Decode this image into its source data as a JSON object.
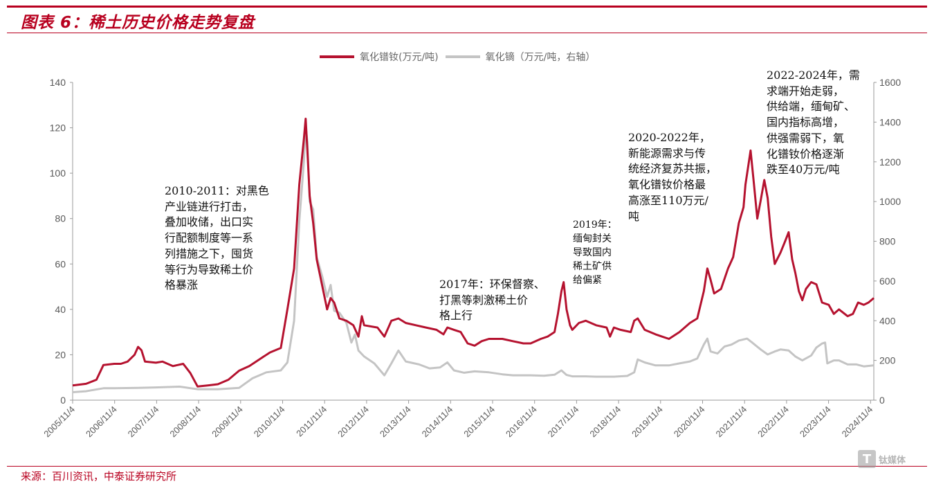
{
  "header": {
    "title": "图表 6：稀土历史价格走势复盘"
  },
  "legend": {
    "left_series": "氧化镨钕(万元/吨)",
    "right_series": "氧化镝（万元/吨，右轴）"
  },
  "annotations": {
    "a": [
      "2010-2011：对黑色",
      "产业链进行打击，",
      "叠加收储，出口实",
      "行配额制度等一系",
      "列措施之下，囤货",
      "等行为导致稀土价",
      "格暴涨"
    ],
    "b": [
      "2017年：环保督察、",
      "打黑等刺激稀土价",
      "格上行"
    ],
    "c": [
      "2019年：",
      "缅甸封关",
      "导致国内",
      "稀土矿供",
      "给偏紧"
    ],
    "d": [
      "2020-2022年，",
      "新能源需求与传",
      "统经济复苏共振，",
      "氧化镨钕价格最",
      "高涨至110万元/",
      "吨"
    ],
    "e": [
      "2022-2024年，需",
      "求端开始走弱，",
      "供给端，缅甸矿、",
      "国内指标高增，",
      "供强需弱下，氧",
      "化镨钕价格逐渐",
      "跌至40万元/吨"
    ]
  },
  "footer": {
    "source": "来源：百川资讯，中泰证券研究所"
  },
  "watermark": {
    "text": "钛媒体"
  },
  "colors": {
    "accent": "#b8001f",
    "prnd": "#b5122f",
    "dy": "#c4c4c4"
  },
  "chart_data": {
    "type": "line",
    "title": "",
    "xlabel": "",
    "ylabel": "",
    "x_ticks": [
      "2005/11/4",
      "2006/11/4",
      "2007/11/4",
      "2008/11/4",
      "2009/11/4",
      "2010/11/4",
      "2011/11/4",
      "2012/11/4",
      "2013/11/4",
      "2014/11/4",
      "2015/11/4",
      "2016/11/4",
      "2017/11/4",
      "2018/11/4",
      "2019/11/4",
      "2020/11/4",
      "2021/11/4",
      "2022/11/4",
      "2023/11/4",
      "2024/11/4"
    ],
    "ylim_left": [
      0,
      140
    ],
    "yticks_left": [
      0,
      20,
      40,
      60,
      80,
      100,
      120,
      140
    ],
    "ylim_right": [
      0,
      1600
    ],
    "yticks_right": [
      0,
      200,
      400,
      600,
      800,
      1000,
      1200,
      1400,
      1600
    ],
    "x_start": "2005-11-04",
    "x_end": "2025-01-31",
    "legend_position": "top",
    "grid": false,
    "series": [
      {
        "name": "氧化镨钕(万元/吨)",
        "axis": "left",
        "points": [
          [
            "2005-11-04",
            6.5
          ],
          [
            "2006-03-01",
            7.2
          ],
          [
            "2006-06-01",
            9
          ],
          [
            "2006-08-01",
            15.5
          ],
          [
            "2006-11-04",
            16
          ],
          [
            "2007-01-01",
            16
          ],
          [
            "2007-03-01",
            17
          ],
          [
            "2007-05-01",
            20
          ],
          [
            "2007-06-01",
            23.5
          ],
          [
            "2007-07-01",
            22
          ],
          [
            "2007-08-01",
            17
          ],
          [
            "2007-11-04",
            16.5
          ],
          [
            "2008-01-01",
            17
          ],
          [
            "2008-04-01",
            15
          ],
          [
            "2008-07-01",
            16
          ],
          [
            "2008-09-01",
            12
          ],
          [
            "2008-11-04",
            6
          ],
          [
            "2009-02-01",
            6.5
          ],
          [
            "2009-05-01",
            7
          ],
          [
            "2009-08-01",
            9
          ],
          [
            "2009-11-04",
            13
          ],
          [
            "2010-02-01",
            15
          ],
          [
            "2010-05-01",
            18
          ],
          [
            "2010-08-01",
            21
          ],
          [
            "2010-11-04",
            23
          ],
          [
            "2011-01-01",
            40
          ],
          [
            "2011-03-01",
            58
          ],
          [
            "2011-04-15",
            95
          ],
          [
            "2011-05-25",
            115
          ],
          [
            "2011-06-10",
            124
          ],
          [
            "2011-06-25",
            110
          ],
          [
            "2011-07-15",
            90
          ],
          [
            "2011-08-15",
            78
          ],
          [
            "2011-09-15",
            62
          ],
          [
            "2011-11-04",
            50
          ],
          [
            "2011-12-15",
            40
          ],
          [
            "2012-01-15",
            45
          ],
          [
            "2012-02-15",
            43
          ],
          [
            "2012-04-01",
            36
          ],
          [
            "2012-06-01",
            35
          ],
          [
            "2012-08-01",
            33
          ],
          [
            "2012-09-15",
            28
          ],
          [
            "2012-10-15",
            37
          ],
          [
            "2012-11-04",
            33
          ],
          [
            "2013-03-01",
            32
          ],
          [
            "2013-05-01",
            28
          ],
          [
            "2013-07-01",
            35
          ],
          [
            "2013-09-01",
            36
          ],
          [
            "2013-11-04",
            34
          ],
          [
            "2014-02-01",
            33
          ],
          [
            "2014-05-01",
            32
          ],
          [
            "2014-08-01",
            31
          ],
          [
            "2014-10-01",
            29
          ],
          [
            "2014-11-04",
            32
          ],
          [
            "2015-01-01",
            31
          ],
          [
            "2015-03-01",
            30
          ],
          [
            "2015-05-01",
            25
          ],
          [
            "2015-07-01",
            24
          ],
          [
            "2015-09-01",
            26
          ],
          [
            "2015-11-04",
            27
          ],
          [
            "2016-03-01",
            27
          ],
          [
            "2016-06-01",
            26
          ],
          [
            "2016-09-01",
            25
          ],
          [
            "2016-11-04",
            25
          ],
          [
            "2017-02-01",
            27
          ],
          [
            "2017-04-01",
            28
          ],
          [
            "2017-06-01",
            30
          ],
          [
            "2017-07-01",
            38
          ],
          [
            "2017-08-01",
            48
          ],
          [
            "2017-08-20",
            52
          ],
          [
            "2017-09-15",
            40
          ],
          [
            "2017-10-15",
            33
          ],
          [
            "2017-11-04",
            31
          ],
          [
            "2018-01-01",
            34
          ],
          [
            "2018-03-01",
            35
          ],
          [
            "2018-06-01",
            33
          ],
          [
            "2018-09-01",
            32
          ],
          [
            "2018-10-01",
            28
          ],
          [
            "2018-11-04",
            32
          ],
          [
            "2019-01-01",
            31
          ],
          [
            "2019-04-01",
            30
          ],
          [
            "2019-05-01",
            35
          ],
          [
            "2019-06-01",
            36
          ],
          [
            "2019-08-01",
            31
          ],
          [
            "2019-11-04",
            29
          ],
          [
            "2020-01-01",
            28
          ],
          [
            "2020-03-01",
            27
          ],
          [
            "2020-06-01",
            30
          ],
          [
            "2020-09-01",
            34
          ],
          [
            "2020-11-04",
            36
          ],
          [
            "2021-01-01",
            48
          ],
          [
            "2021-02-01",
            58
          ],
          [
            "2021-03-01",
            53
          ],
          [
            "2021-04-01",
            47
          ],
          [
            "2021-06-01",
            49
          ],
          [
            "2021-08-01",
            58
          ],
          [
            "2021-09-15",
            63
          ],
          [
            "2021-11-04",
            78
          ],
          [
            "2021-12-15",
            85
          ],
          [
            "2022-01-01",
            95
          ],
          [
            "2022-02-15",
            110
          ],
          [
            "2022-03-15",
            96
          ],
          [
            "2022-04-15",
            80
          ],
          [
            "2022-05-15",
            88
          ],
          [
            "2022-06-15",
            97
          ],
          [
            "2022-07-15",
            89
          ],
          [
            "2022-08-15",
            72
          ],
          [
            "2022-09-15",
            60
          ],
          [
            "2022-11-04",
            65
          ],
          [
            "2022-12-15",
            70
          ],
          [
            "2023-01-15",
            74
          ],
          [
            "2023-02-15",
            62
          ],
          [
            "2023-03-15",
            56
          ],
          [
            "2023-04-15",
            48
          ],
          [
            "2023-05-15",
            44
          ],
          [
            "2023-06-15",
            49
          ],
          [
            "2023-08-01",
            52
          ],
          [
            "2023-09-15",
            51
          ],
          [
            "2023-11-04",
            43
          ],
          [
            "2024-01-01",
            42
          ],
          [
            "2024-02-15",
            38
          ],
          [
            "2024-04-01",
            40
          ],
          [
            "2024-06-15",
            37
          ],
          [
            "2024-08-01",
            38
          ],
          [
            "2024-09-15",
            43
          ],
          [
            "2024-11-04",
            42
          ],
          [
            "2024-12-15",
            43
          ],
          [
            "2025-01-31",
            45
          ]
        ]
      },
      {
        "name": "氧化镝（万元/吨，右轴）",
        "axis": "right",
        "points": [
          [
            "2005-11-04",
            40
          ],
          [
            "2006-03-01",
            45
          ],
          [
            "2006-08-01",
            60
          ],
          [
            "2006-11-04",
            60
          ],
          [
            "2007-06-01",
            62
          ],
          [
            "2007-11-04",
            64
          ],
          [
            "2008-06-01",
            68
          ],
          [
            "2008-11-04",
            55
          ],
          [
            "2009-05-01",
            55
          ],
          [
            "2009-11-04",
            62
          ],
          [
            "2010-03-01",
            110
          ],
          [
            "2010-07-01",
            140
          ],
          [
            "2010-11-04",
            150
          ],
          [
            "2011-01-01",
            190
          ],
          [
            "2011-03-01",
            400
          ],
          [
            "2011-04-15",
            900
          ],
          [
            "2011-05-25",
            1200
          ],
          [
            "2011-06-10",
            1380
          ],
          [
            "2011-06-25",
            1300
          ],
          [
            "2011-07-15",
            1000
          ],
          [
            "2011-08-15",
            960
          ],
          [
            "2011-09-15",
            720
          ],
          [
            "2011-11-04",
            620
          ],
          [
            "2011-12-15",
            520
          ],
          [
            "2012-01-15",
            580
          ],
          [
            "2012-02-15",
            450
          ],
          [
            "2012-04-01",
            440
          ],
          [
            "2012-06-01",
            390
          ],
          [
            "2012-07-15",
            290
          ],
          [
            "2012-08-15",
            330
          ],
          [
            "2012-09-15",
            250
          ],
          [
            "2012-11-04",
            220
          ],
          [
            "2013-02-01",
            185
          ],
          [
            "2013-05-01",
            125
          ],
          [
            "2013-07-01",
            185
          ],
          [
            "2013-09-01",
            250
          ],
          [
            "2013-11-04",
            195
          ],
          [
            "2014-03-01",
            180
          ],
          [
            "2014-06-01",
            160
          ],
          [
            "2014-09-01",
            165
          ],
          [
            "2014-11-04",
            190
          ],
          [
            "2015-01-01",
            150
          ],
          [
            "2015-04-01",
            138
          ],
          [
            "2015-07-01",
            145
          ],
          [
            "2015-11-04",
            140
          ],
          [
            "2016-03-01",
            130
          ],
          [
            "2016-06-01",
            125
          ],
          [
            "2016-11-04",
            125
          ],
          [
            "2017-03-01",
            123
          ],
          [
            "2017-06-01",
            128
          ],
          [
            "2017-08-01",
            150
          ],
          [
            "2017-09-15",
            127
          ],
          [
            "2017-11-04",
            120
          ],
          [
            "2018-03-01",
            120
          ],
          [
            "2018-06-01",
            118
          ],
          [
            "2018-11-04",
            118
          ],
          [
            "2019-03-01",
            122
          ],
          [
            "2019-05-01",
            140
          ],
          [
            "2019-06-01",
            205
          ],
          [
            "2019-08-01",
            190
          ],
          [
            "2019-11-04",
            175
          ],
          [
            "2020-03-01",
            175
          ],
          [
            "2020-06-01",
            185
          ],
          [
            "2020-09-01",
            195
          ],
          [
            "2020-11-04",
            210
          ],
          [
            "2021-01-01",
            280
          ],
          [
            "2021-02-01",
            310
          ],
          [
            "2021-03-01",
            245
          ],
          [
            "2021-05-01",
            235
          ],
          [
            "2021-07-01",
            270
          ],
          [
            "2021-09-01",
            280
          ],
          [
            "2021-11-04",
            300
          ],
          [
            "2022-01-15",
            310
          ],
          [
            "2022-03-01",
            290
          ],
          [
            "2022-05-15",
            255
          ],
          [
            "2022-07-15",
            230
          ],
          [
            "2022-09-15",
            245
          ],
          [
            "2022-11-04",
            255
          ],
          [
            "2023-01-15",
            250
          ],
          [
            "2023-03-15",
            220
          ],
          [
            "2023-05-15",
            200
          ],
          [
            "2023-08-01",
            225
          ],
          [
            "2023-09-15",
            265
          ],
          [
            "2023-11-04",
            285
          ],
          [
            "2023-12-01",
            290
          ],
          [
            "2023-12-20",
            185
          ],
          [
            "2024-02-15",
            200
          ],
          [
            "2024-04-01",
            200
          ],
          [
            "2024-06-15",
            180
          ],
          [
            "2024-09-01",
            180
          ],
          [
            "2024-11-04",
            170
          ],
          [
            "2025-01-31",
            175
          ]
        ]
      }
    ]
  }
}
